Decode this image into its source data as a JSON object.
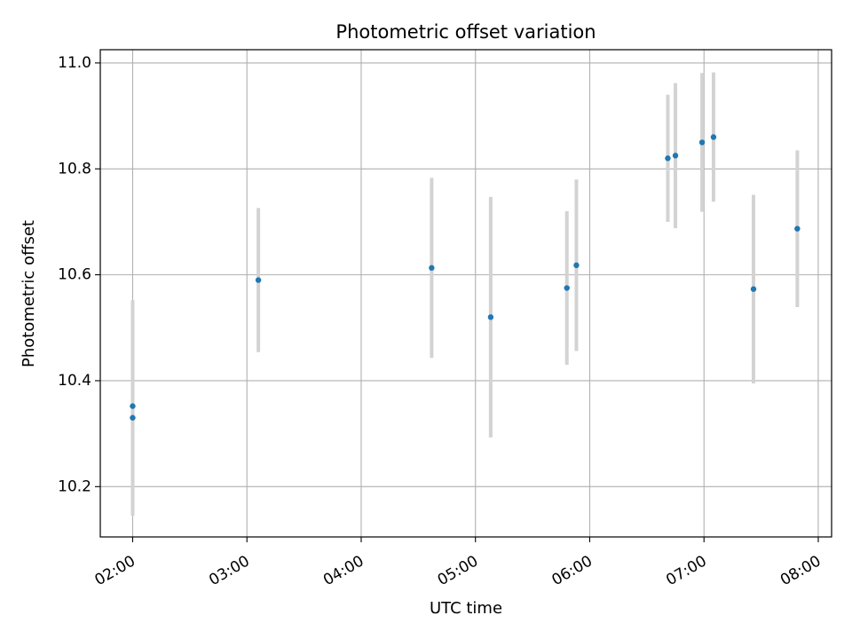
{
  "chart_data": {
    "type": "scatter",
    "title": "Photometric offset variation",
    "xlabel": "UTC time",
    "ylabel": "Photometric offset",
    "xlim": [
      "01:43",
      "08:07"
    ],
    "ylim": [
      10.105,
      11.025
    ],
    "x_ticks": [
      "02:00",
      "03:00",
      "04:00",
      "05:00",
      "06:00",
      "07:00",
      "08:00"
    ],
    "y_ticks": [
      "10.2",
      "10.4",
      "10.6",
      "10.8",
      "11.0"
    ],
    "grid": true,
    "colors": {
      "point": "#1f77b4",
      "errorbar": "#d3d3d3",
      "grid": "#b0b0b0"
    },
    "points": [
      {
        "x": "02:00",
        "y": 10.33,
        "err": 0.185
      },
      {
        "x": "02:00",
        "y": 10.352,
        "err": 0.2
      },
      {
        "x": "03:06",
        "y": 10.59,
        "err": 0.136
      },
      {
        "x": "04:37",
        "y": 10.613,
        "err": 0.17
      },
      {
        "x": "05:08",
        "y": 10.52,
        "err": 0.227
      },
      {
        "x": "05:48",
        "y": 10.575,
        "err": 0.145
      },
      {
        "x": "05:53",
        "y": 10.618,
        "err": 0.162
      },
      {
        "x": "06:41",
        "y": 10.82,
        "err": 0.12
      },
      {
        "x": "06:45",
        "y": 10.825,
        "err": 0.137
      },
      {
        "x": "06:59",
        "y": 10.85,
        "err": 0.131
      },
      {
        "x": "07:05",
        "y": 10.86,
        "err": 0.122
      },
      {
        "x": "07:26",
        "y": 10.573,
        "err": 0.178
      },
      {
        "x": "07:49",
        "y": 10.687,
        "err": 0.148
      }
    ]
  }
}
